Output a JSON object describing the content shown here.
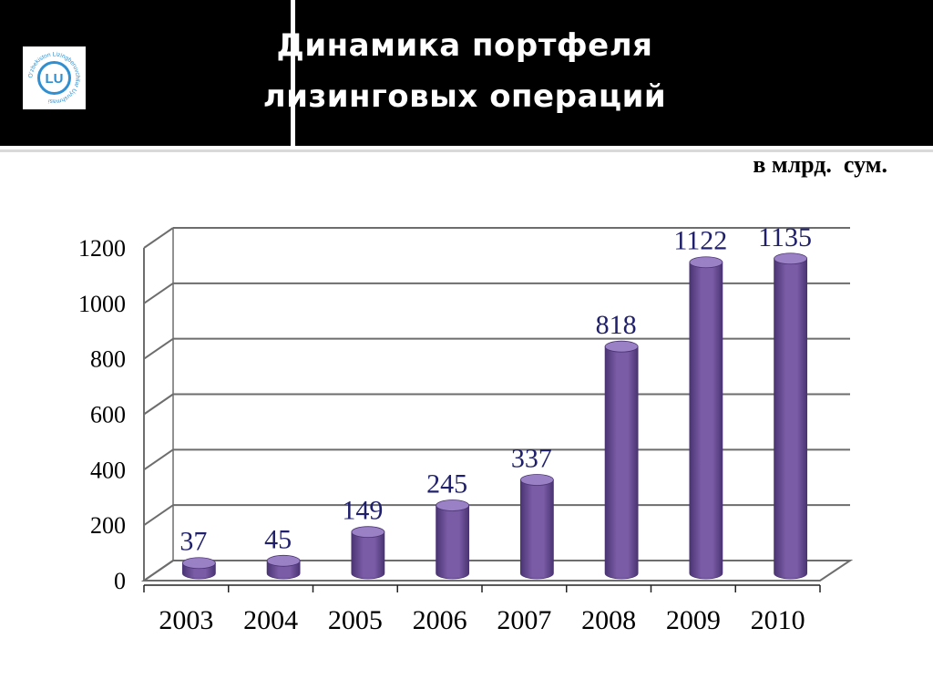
{
  "header": {
    "title_line1": "Динамика портфеля",
    "title_line2": "лизинговых операций",
    "logo_label": "LU",
    "logo_ring_text": "O'zbekiston Lizingberuvchilar Uyushmasi"
  },
  "unit_label": "в млрд.  сум.",
  "colors": {
    "background": "#ffffff",
    "header": "#000000",
    "bar_fill": "#7a5ba6",
    "bar_dark": "#4a3473",
    "bar_top": "#9a80c4",
    "data_label": "#1f1f6b",
    "grid": "#6d6d6d",
    "logo_blue": "#2f8fd0"
  },
  "chart_data": {
    "type": "bar",
    "title": "Динамика портфеля лизинговых операций",
    "categories": [
      "2003",
      "2004",
      "2005",
      "2006",
      "2007",
      "2008",
      "2009",
      "2010"
    ],
    "values": [
      37,
      45,
      149,
      245,
      337,
      818,
      1122,
      1135
    ],
    "data_labels": [
      "37",
      "45",
      "149",
      "245",
      "337",
      "818",
      "1122",
      "1135"
    ],
    "y_ticks": [
      "0",
      "200",
      "400",
      "600",
      "800",
      "1000",
      "1200"
    ],
    "ylim": [
      0,
      1200
    ],
    "xlabel": "",
    "ylabel": "",
    "grid": true,
    "legend": "none",
    "style": "3d-cylinder"
  }
}
